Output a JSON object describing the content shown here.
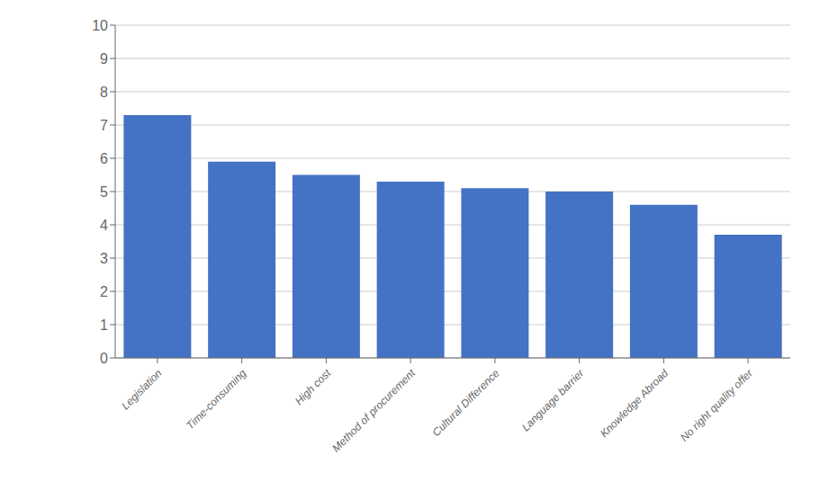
{
  "chart_data": {
    "type": "bar",
    "categories": [
      "Legislation",
      "Time-consuming",
      "High cost",
      "Method of procurement",
      "Cultural Difference",
      "Language barrier",
      "Knowledge Abroad",
      "No right quality offer"
    ],
    "values": [
      7.3,
      5.9,
      5.5,
      5.3,
      5.1,
      5.0,
      4.6,
      3.7
    ],
    "color": "#4472C4",
    "ylim": [
      0,
      10
    ],
    "yticks": [
      0,
      1,
      2,
      3,
      4,
      5,
      6,
      7,
      8,
      9,
      10
    ],
    "grid": true
  }
}
